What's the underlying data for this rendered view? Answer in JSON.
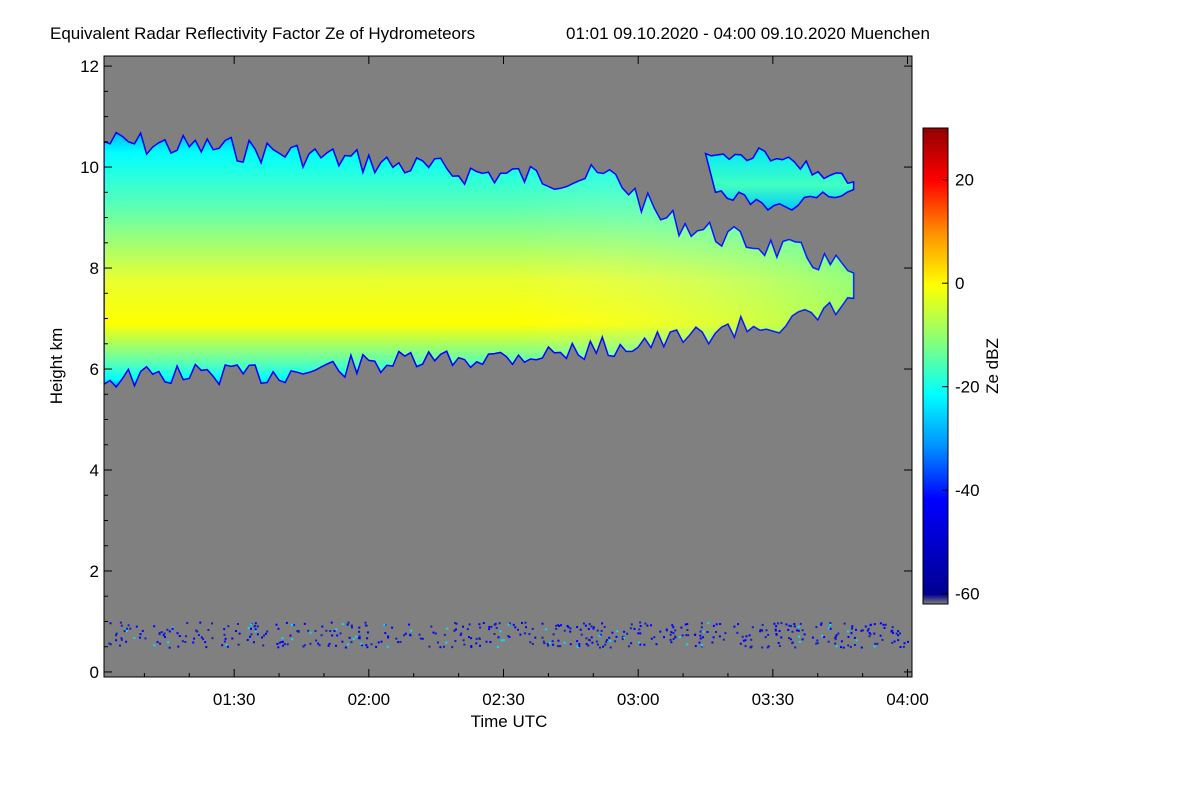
{
  "chart_data": {
    "type": "heatmap",
    "title": "Equivalent Radar Reflectivity Factor Ze of Hydrometeors",
    "subtitle": "01:01 09.10.2020 - 04:00 09.10.2020 Muenchen",
    "xlabel": "Time UTC",
    "ylabel": "Height km",
    "colorbar_label": "Ze dBZ",
    "x_range": [
      "01:01",
      "04:01"
    ],
    "x_ticks": [
      "01:30",
      "02:00",
      "02:30",
      "03:00",
      "03:30",
      "04:00"
    ],
    "ylim": [
      -0.1,
      12.2
    ],
    "y_ticks": [
      0,
      2,
      4,
      6,
      8,
      10,
      12
    ],
    "colorbar_range": [
      -62,
      30
    ],
    "colorbar_ticks": [
      -60,
      -40,
      -20,
      0,
      20
    ],
    "background_color": "#808080",
    "colormap": [
      "#000090",
      "#0000ff",
      "#0090ff",
      "#00ffff",
      "#90ff70",
      "#ffff00",
      "#ff9000",
      "#ff0000",
      "#900000"
    ],
    "cloud_layer": {
      "description_values": "ice cloud layer between ~6 km and ~10.5 km, thinning and rising with time",
      "base_km": [
        [
          "01:01",
          5.8
        ],
        [
          "01:20",
          5.9
        ],
        [
          "01:40",
          5.9
        ],
        [
          "02:00",
          6.1
        ],
        [
          "02:20",
          6.2
        ],
        [
          "02:40",
          6.3
        ],
        [
          "03:00",
          6.5
        ],
        [
          "03:10",
          6.6
        ],
        [
          "03:20",
          6.8
        ],
        [
          "03:30",
          6.9
        ],
        [
          "03:40",
          7.0
        ],
        [
          "03:48",
          7.4
        ]
      ],
      "top_km": [
        [
          "01:01",
          10.5
        ],
        [
          "01:20",
          10.4
        ],
        [
          "01:40",
          10.3
        ],
        [
          "02:00",
          10.1
        ],
        [
          "02:20",
          9.9
        ],
        [
          "02:40",
          9.8
        ],
        [
          "02:55",
          9.8
        ],
        [
          "03:05",
          9.0
        ],
        [
          "03:20",
          8.6
        ],
        [
          "03:35",
          8.3
        ],
        [
          "03:48",
          7.9
        ]
      ],
      "peak_ze_dBZ": -2
    },
    "upper_patch": {
      "time_range": [
        "03:15",
        "03:48"
      ],
      "height_km": [
        9.0,
        10.3
      ],
      "ze_dBZ": -22
    },
    "boundary_layer_noise": {
      "height_km": [
        0.5,
        1.0
      ],
      "ze_dBZ": -42
    }
  }
}
